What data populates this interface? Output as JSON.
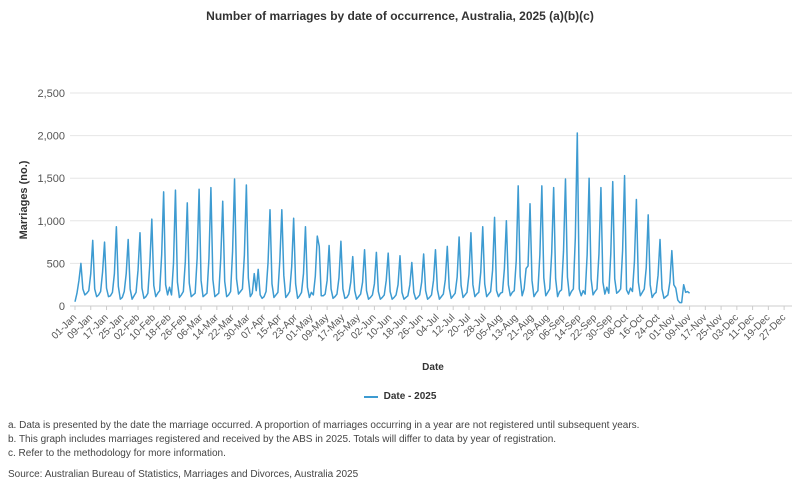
{
  "chart_data": {
    "type": "line",
    "title": "Number of marriages by date of occurrence, Australia, 2025 (a)(b)(c)",
    "xlabel": "Date",
    "ylabel": "Marriages (no.)",
    "ylim": [
      0,
      2500
    ],
    "yticks": [
      "0",
      "500",
      "1,000",
      "1,500",
      "2,000",
      "2,500"
    ],
    "grid": "horizontal",
    "legend_position": "bottom",
    "colors": {
      "series": "#3d9bd1",
      "grid": "#e6e6e6",
      "axis": "#cccccc"
    },
    "x_start_date": "2025-01-01",
    "x_tick_labels": [
      "01-Jan",
      "09-Jan",
      "17-Jan",
      "25-Jan",
      "02-Feb",
      "10-Feb",
      "18-Feb",
      "26-Feb",
      "06-Mar",
      "14-Mar",
      "22-Mar",
      "30-Mar",
      "07-Apr",
      "15-Apr",
      "23-Apr",
      "01-May",
      "09-May",
      "17-May",
      "25-May",
      "02-Jun",
      "10-Jun",
      "18-Jun",
      "26-Jun",
      "04-Jul",
      "12-Jul",
      "20-Jul",
      "28-Jul",
      "05-Aug",
      "13-Aug",
      "21-Aug",
      "29-Aug",
      "06-Sep",
      "14-Sep",
      "22-Sep",
      "30-Sep",
      "08-Oct",
      "16-Oct",
      "24-Oct",
      "01-Nov",
      "09-Nov",
      "17-Nov",
      "25-Nov",
      "03-Dec",
      "11-Dec",
      "19-Dec",
      "27-Dec"
    ],
    "series": [
      {
        "name": "Date - 2025",
        "values": [
          50,
          150,
          300,
          500,
          200,
          130,
          150,
          180,
          380,
          770,
          200,
          110,
          130,
          170,
          400,
          750,
          210,
          110,
          120,
          160,
          380,
          930,
          230,
          80,
          100,
          170,
          380,
          780,
          200,
          80,
          120,
          160,
          420,
          860,
          210,
          90,
          110,
          150,
          500,
          1020,
          240,
          110,
          150,
          180,
          600,
          1340,
          250,
          130,
          220,
          130,
          500,
          1360,
          280,
          100,
          130,
          170,
          520,
          1210,
          270,
          110,
          130,
          150,
          560,
          1370,
          300,
          110,
          130,
          150,
          560,
          1390,
          310,
          110,
          130,
          150,
          560,
          1230,
          290,
          110,
          130,
          170,
          640,
          1490,
          320,
          140,
          170,
          200,
          600,
          1420,
          330,
          110,
          150,
          380,
          180,
          430,
          130,
          90,
          110,
          170,
          510,
          1130,
          260,
          100,
          130,
          160,
          540,
          1130,
          360,
          100,
          130,
          170,
          460,
          1030,
          260,
          90,
          120,
          160,
          380,
          930,
          220,
          100,
          160,
          130,
          350,
          820,
          700,
          120,
          120,
          140,
          300,
          710,
          200,
          90,
          110,
          140,
          330,
          760,
          200,
          90,
          100,
          140,
          280,
          580,
          180,
          80,
          110,
          140,
          280,
          660,
          180,
          80,
          100,
          130,
          260,
          630,
          170,
          80,
          100,
          130,
          300,
          620,
          170,
          80,
          100,
          130,
          250,
          590,
          160,
          80,
          100,
          120,
          250,
          510,
          160,
          80,
          100,
          130,
          280,
          610,
          180,
          80,
          100,
          130,
          300,
          660,
          190,
          80,
          110,
          140,
          310,
          700,
          210,
          90,
          120,
          150,
          340,
          810,
          240,
          100,
          130,
          160,
          370,
          860,
          250,
          110,
          140,
          160,
          400,
          930,
          260,
          110,
          140,
          170,
          420,
          1040,
          180,
          110,
          150,
          160,
          440,
          1000,
          250,
          120,
          160,
          180,
          530,
          1410,
          350,
          120,
          200,
          440,
          470,
          1200,
          300,
          110,
          150,
          180,
          600,
          1410,
          330,
          120,
          160,
          200,
          620,
          1390,
          320,
          110,
          170,
          190,
          640,
          1490,
          340,
          120,
          170,
          200,
          800,
          2030,
          200,
          120,
          180,
          140,
          600,
          1500,
          320,
          130,
          170,
          200,
          610,
          1390,
          280,
          140,
          220,
          150,
          610,
          1460,
          320,
          150,
          170,
          200,
          650,
          1530,
          190,
          140,
          210,
          170,
          520,
          1250,
          280,
          120,
          160,
          200,
          450,
          1070,
          250,
          100,
          140,
          160,
          360,
          780,
          200,
          90,
          110,
          130,
          280,
          650,
          250,
          210,
          70,
          40,
          40,
          250,
          160,
          170,
          150
        ]
      }
    ]
  },
  "legend": {
    "label": "Date - 2025"
  },
  "notes": [
    "a. Data is presented by the date the marriage occurred. A proportion of marriages occurring in a year are not registered until subsequent years.",
    "b. This graph includes marriages registered and received by the ABS in 2025. Totals will differ to data by year of registration.",
    "c. Refer to the methodology for more information."
  ],
  "source": "Source: Australian Bureau of Statistics, Marriages and Divorces, Australia 2025"
}
